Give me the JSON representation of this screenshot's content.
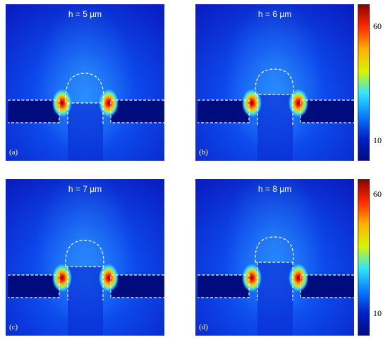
{
  "figure": {
    "panels": [
      {
        "title": "h = 5 µm",
        "label": "(a)"
      },
      {
        "title": "h = 6 µm",
        "label": "(b)"
      },
      {
        "title": "h = 7 µm",
        "label": "(c)"
      },
      {
        "title": "h = 8 µm",
        "label": "(d)"
      }
    ],
    "colorbar": {
      "ticks": [
        "60",
        "10"
      ],
      "colors": [
        "#8b0000",
        "#ff2a00",
        "#ffb000",
        "#d8f500",
        "#2de6ff",
        "#0a7cff",
        "#0020c8",
        "#000a80"
      ]
    }
  }
}
